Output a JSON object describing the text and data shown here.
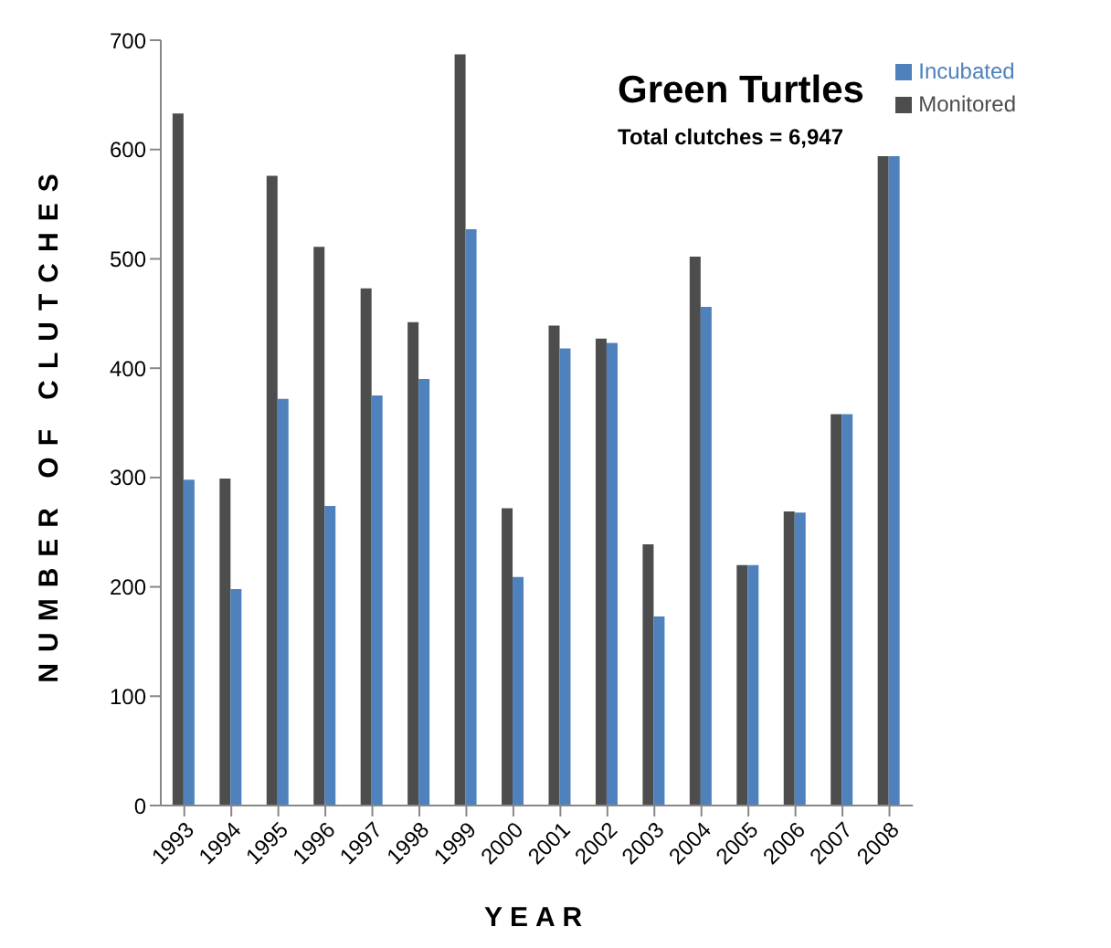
{
  "chart_data": {
    "type": "bar",
    "title": "Green Turtles",
    "subtitle": "Total clutches = 6,947",
    "xlabel": "YEAR",
    "ylabel": "NUMBER OF CLUTCHES",
    "categories": [
      "1993",
      "1994",
      "1995",
      "1996",
      "1997",
      "1998",
      "1999",
      "2000",
      "2001",
      "2002",
      "2003",
      "2004",
      "2005",
      "2006",
      "2007",
      "2008"
    ],
    "series": [
      {
        "name": "Monitored",
        "color": "#4d4d4d",
        "values": [
          633,
          299,
          576,
          511,
          473,
          442,
          687,
          272,
          439,
          427,
          239,
          502,
          220,
          269,
          358,
          594
        ]
      },
      {
        "name": "Incubated",
        "color": "#4f81bd",
        "values": [
          298,
          198,
          372,
          274,
          375,
          390,
          527,
          209,
          418,
          423,
          173,
          456,
          220,
          268,
          358,
          594
        ]
      }
    ],
    "ylim": [
      0,
      700
    ],
    "yticks": [
      0,
      100,
      200,
      300,
      400,
      500,
      600,
      700
    ],
    "grid": false,
    "legend": "top right"
  }
}
